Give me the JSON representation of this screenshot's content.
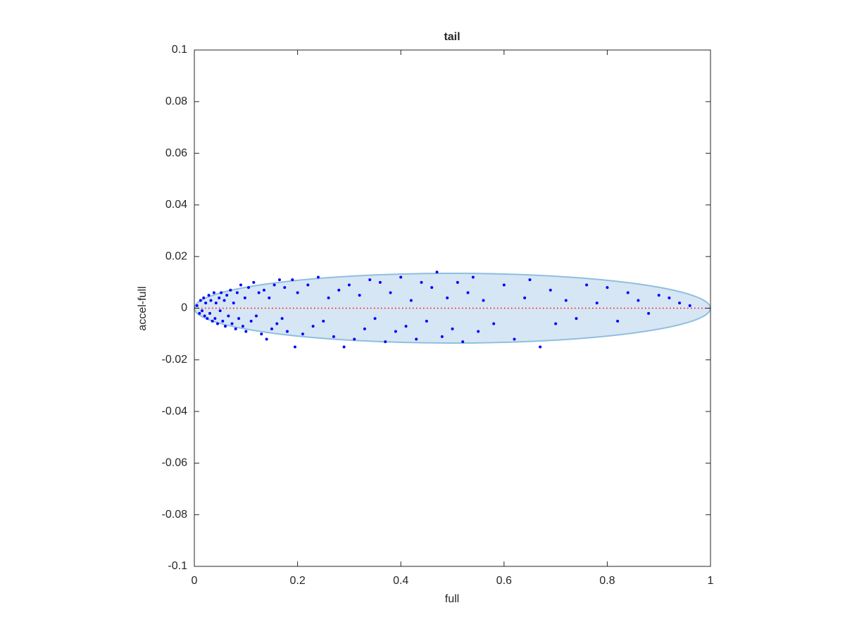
{
  "chart_data": {
    "type": "scatter",
    "title": "tail",
    "x_label": "full",
    "y_label": "accel-full",
    "xlim": [
      0,
      1
    ],
    "ylim": [
      -0.1,
      0.1
    ],
    "xticks": [
      0,
      0.2,
      0.4,
      0.6,
      0.8,
      1
    ],
    "yticks": [
      -0.1,
      -0.08,
      -0.06,
      -0.04,
      -0.02,
      0,
      0.02,
      0.04,
      0.06,
      0.08,
      0.1
    ],
    "ellipse": {
      "cx": 0.5,
      "cy": 0,
      "rx": 0.5,
      "ry": 0.0135,
      "color": "#d6e6f4",
      "edge_color": "#8fbfe0"
    },
    "reference_line": {
      "x": [
        0,
        1
      ],
      "y": [
        0,
        0
      ],
      "color": "#ff0000"
    },
    "series": [
      {
        "color": "#0000ff",
        "x": [
          0.005,
          0.01,
          0.012,
          0.015,
          0.018,
          0.02,
          0.022,
          0.025,
          0.028,
          0.03,
          0.032,
          0.035,
          0.038,
          0.04,
          0.042,
          0.045,
          0.048,
          0.05,
          0.052,
          0.055,
          0.058,
          0.06,
          0.063,
          0.066,
          0.07,
          0.073,
          0.076,
          0.08,
          0.083,
          0.086,
          0.09,
          0.094,
          0.098,
          0.1,
          0.105,
          0.11,
          0.115,
          0.12,
          0.125,
          0.13,
          0.135,
          0.14,
          0.145,
          0.15,
          0.155,
          0.16,
          0.165,
          0.17,
          0.175,
          0.18,
          0.19,
          0.195,
          0.2,
          0.21,
          0.22,
          0.23,
          0.24,
          0.25,
          0.26,
          0.27,
          0.28,
          0.29,
          0.3,
          0.31,
          0.32,
          0.33,
          0.34,
          0.35,
          0.36,
          0.37,
          0.38,
          0.39,
          0.4,
          0.41,
          0.42,
          0.43,
          0.44,
          0.45,
          0.46,
          0.47,
          0.48,
          0.49,
          0.5,
          0.51,
          0.52,
          0.53,
          0.54,
          0.55,
          0.56,
          0.58,
          0.6,
          0.62,
          0.64,
          0.65,
          0.67,
          0.69,
          0.7,
          0.72,
          0.74,
          0.76,
          0.78,
          0.8,
          0.82,
          0.84,
          0.86,
          0.88,
          0.9,
          0.92,
          0.94,
          0.96
        ],
        "values": [
          0.001,
          -0.002,
          0.003,
          -0.001,
          0.004,
          -0.003,
          0.002,
          -0.004,
          0.005,
          -0.002,
          0.003,
          -0.005,
          0.006,
          -0.004,
          0.002,
          -0.006,
          0.004,
          -0.001,
          0.006,
          -0.005,
          0.003,
          -0.007,
          0.005,
          -0.003,
          0.007,
          -0.006,
          0.002,
          -0.008,
          0.006,
          -0.004,
          0.009,
          -0.007,
          0.004,
          -0.009,
          0.008,
          -0.005,
          0.01,
          -0.003,
          0.006,
          -0.01,
          0.007,
          -0.012,
          0.004,
          -0.008,
          0.009,
          -0.006,
          0.011,
          -0.004,
          0.008,
          -0.009,
          0.011,
          -0.015,
          0.006,
          -0.01,
          0.009,
          -0.007,
          0.012,
          -0.005,
          0.004,
          -0.011,
          0.007,
          -0.015,
          0.009,
          -0.012,
          0.005,
          -0.008,
          0.011,
          -0.004,
          0.01,
          -0.013,
          0.006,
          -0.009,
          0.012,
          -0.007,
          0.003,
          -0.012,
          0.01,
          -0.005,
          0.008,
          0.014,
          -0.011,
          0.004,
          -0.008,
          0.01,
          -0.013,
          0.006,
          0.012,
          -0.009,
          0.003,
          -0.006,
          0.009,
          -0.012,
          0.004,
          0.011,
          -0.015,
          0.007,
          -0.006,
          0.003,
          -0.004,
          0.009,
          0.002,
          0.008,
          -0.005,
          0.006,
          0.003,
          -0.002,
          0.005,
          0.004,
          0.002,
          0.001
        ]
      }
    ]
  }
}
